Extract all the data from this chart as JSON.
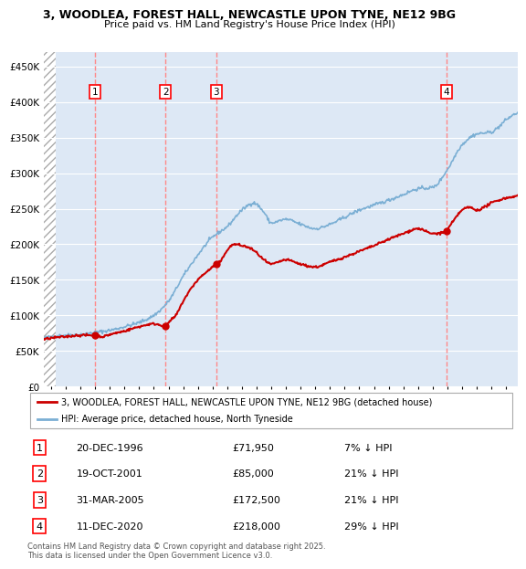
{
  "title_line1": "3, WOODLEA, FOREST HALL, NEWCASTLE UPON TYNE, NE12 9BG",
  "title_line2": "Price paid vs. HM Land Registry's House Price Index (HPI)",
  "ylabel_ticks": [
    "£0",
    "£50K",
    "£100K",
    "£150K",
    "£200K",
    "£250K",
    "£300K",
    "£350K",
    "£400K",
    "£450K"
  ],
  "ytick_values": [
    0,
    50000,
    100000,
    150000,
    200000,
    250000,
    300000,
    350000,
    400000,
    450000
  ],
  "ylim": [
    0,
    470000
  ],
  "xlim_start": 1993.5,
  "xlim_end": 2025.8,
  "hpi_color": "#7BAFD4",
  "price_color": "#CC0000",
  "sale_dates": [
    1996.97,
    2001.8,
    2005.25,
    2020.95
  ],
  "sale_prices": [
    71950,
    85000,
    172500,
    218000
  ],
  "sale_labels": [
    "1",
    "2",
    "3",
    "4"
  ],
  "vline_color": "#FF8888",
  "legend_label_price": "3, WOODLEA, FOREST HALL, NEWCASTLE UPON TYNE, NE12 9BG (detached house)",
  "legend_label_hpi": "HPI: Average price, detached house, North Tyneside",
  "table_entries": [
    {
      "num": "1",
      "date": "20-DEC-1996",
      "price": "£71,950",
      "pct": "7% ↓ HPI"
    },
    {
      "num": "2",
      "date": "19-OCT-2001",
      "price": "£85,000",
      "pct": "21% ↓ HPI"
    },
    {
      "num": "3",
      "date": "31-MAR-2005",
      "price": "£172,500",
      "pct": "21% ↓ HPI"
    },
    {
      "num": "4",
      "date": "11-DEC-2020",
      "price": "£218,000",
      "pct": "29% ↓ HPI"
    }
  ],
  "footer": "Contains HM Land Registry data © Crown copyright and database right 2025.\nThis data is licensed under the Open Government Licence v3.0.",
  "bg_color": "#DDE8F5",
  "hatch_color": "#AAAAAA",
  "grid_color": "#FFFFFF"
}
